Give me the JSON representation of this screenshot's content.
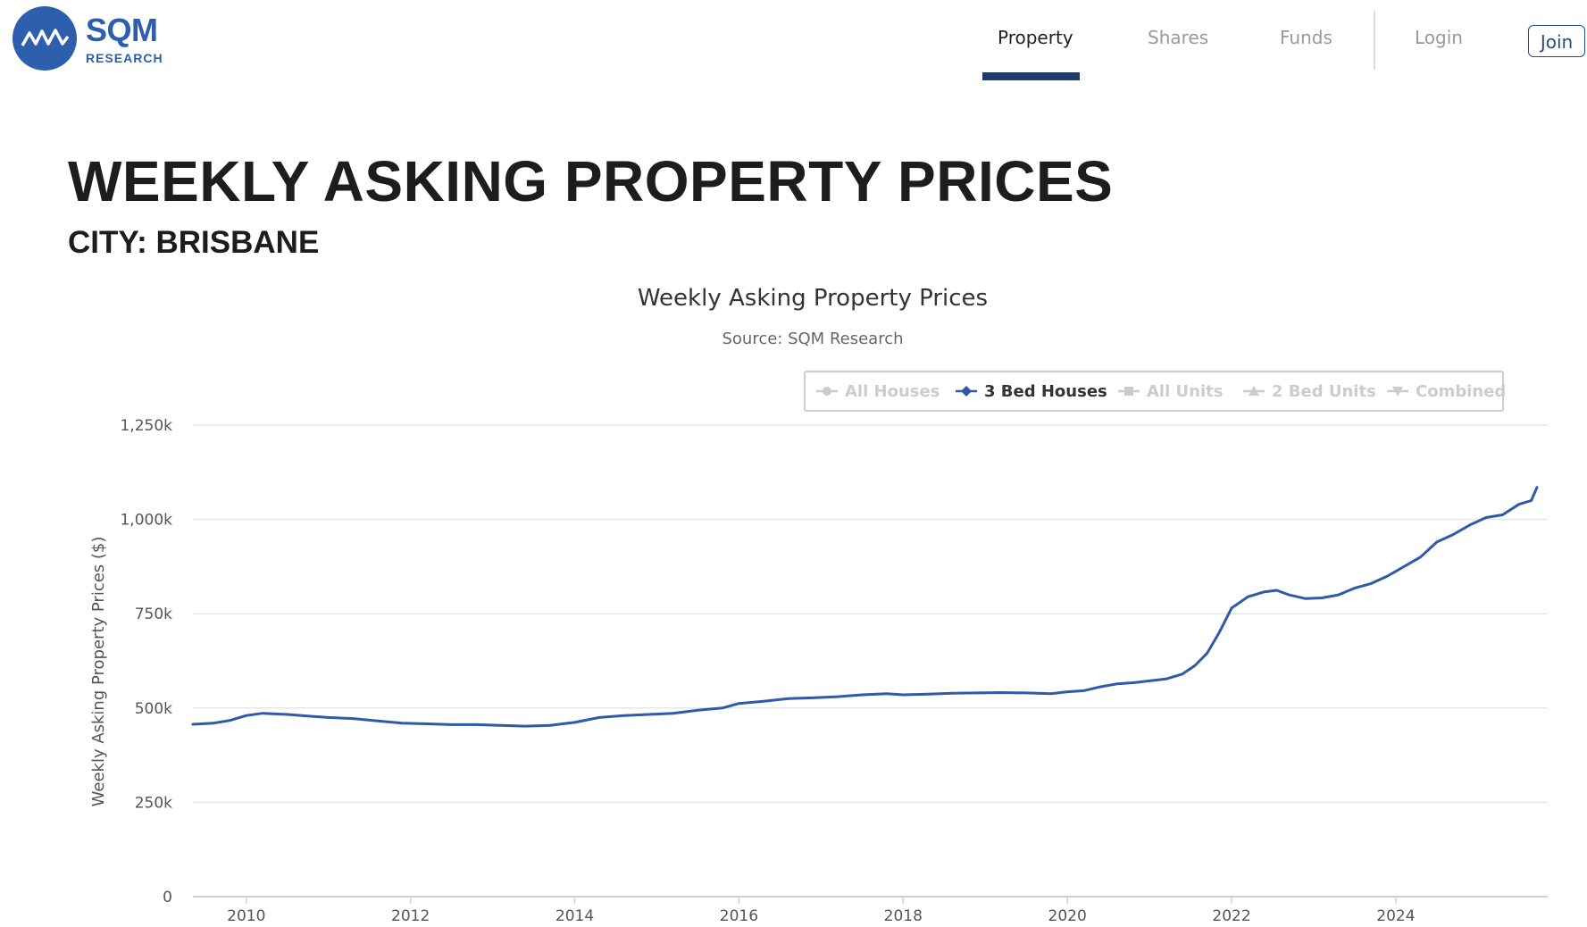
{
  "brand": {
    "name": "SQM",
    "sub": "RESEARCH",
    "color": "#2d5fae"
  },
  "nav": {
    "items": [
      {
        "label": "Property",
        "active": true
      },
      {
        "label": "Shares",
        "active": false
      },
      {
        "label": "Funds",
        "active": false
      },
      {
        "label": "Login",
        "active": false
      }
    ],
    "join_label": "Join",
    "accent": "#1f3a6e"
  },
  "page": {
    "title": "WEEKLY ASKING PROPERTY PRICES",
    "subtitle": "CITY: BRISBANE"
  },
  "chart_data": {
    "type": "line",
    "title": "Weekly Asking Property Prices",
    "subtitle": "Source: SQM Research",
    "ylabel": "Weekly Asking Property Prices ($)",
    "xlabel": "",
    "ylim": [
      0,
      1250000
    ],
    "yticks": [
      {
        "value": 0,
        "label": "0"
      },
      {
        "value": 250000,
        "label": "250k"
      },
      {
        "value": 500000,
        "label": "500k"
      },
      {
        "value": 750000,
        "label": "750k"
      },
      {
        "value": 1000000,
        "label": "1,000k"
      },
      {
        "value": 1250000,
        "label": "1,250k"
      }
    ],
    "xlim": [
      2009.35,
      2025.85
    ],
    "xticks": [
      {
        "value": 2010,
        "label": "2010"
      },
      {
        "value": 2012,
        "label": "2012"
      },
      {
        "value": 2014,
        "label": "2014"
      },
      {
        "value": 2016,
        "label": "2016"
      },
      {
        "value": 2018,
        "label": "2018"
      },
      {
        "value": 2020,
        "label": "2020"
      },
      {
        "value": 2022,
        "label": "2022"
      },
      {
        "value": 2024,
        "label": "2024"
      }
    ],
    "grid": true,
    "legend_position": "top-right",
    "legend": [
      {
        "name": "All Houses",
        "marker": "circle",
        "visible": false
      },
      {
        "name": "3 Bed Houses",
        "marker": "diamond",
        "visible": true
      },
      {
        "name": "All Units",
        "marker": "square",
        "visible": false
      },
      {
        "name": "2 Bed Units",
        "marker": "triangle",
        "visible": false
      },
      {
        "name": "Combined",
        "marker": "triangle-down",
        "visible": false
      }
    ],
    "series": [
      {
        "name": "3 Bed Houses",
        "color": "#2e5aa8",
        "points": [
          [
            2009.35,
            457000
          ],
          [
            2009.6,
            460000
          ],
          [
            2009.8,
            467000
          ],
          [
            2010.0,
            480000
          ],
          [
            2010.2,
            486000
          ],
          [
            2010.5,
            483000
          ],
          [
            2010.8,
            478000
          ],
          [
            2011.0,
            475000
          ],
          [
            2011.3,
            472000
          ],
          [
            2011.6,
            466000
          ],
          [
            2011.9,
            460000
          ],
          [
            2012.2,
            458000
          ],
          [
            2012.5,
            456000
          ],
          [
            2012.8,
            456000
          ],
          [
            2013.1,
            454000
          ],
          [
            2013.4,
            452000
          ],
          [
            2013.7,
            454000
          ],
          [
            2014.0,
            462000
          ],
          [
            2014.3,
            475000
          ],
          [
            2014.6,
            480000
          ],
          [
            2014.9,
            483000
          ],
          [
            2015.2,
            486000
          ],
          [
            2015.5,
            494000
          ],
          [
            2015.8,
            500000
          ],
          [
            2016.0,
            512000
          ],
          [
            2016.3,
            518000
          ],
          [
            2016.6,
            525000
          ],
          [
            2016.9,
            527000
          ],
          [
            2017.2,
            530000
          ],
          [
            2017.5,
            535000
          ],
          [
            2017.8,
            538000
          ],
          [
            2018.0,
            535000
          ],
          [
            2018.3,
            537000
          ],
          [
            2018.6,
            539000
          ],
          [
            2018.9,
            540000
          ],
          [
            2019.2,
            541000
          ],
          [
            2019.5,
            540000
          ],
          [
            2019.8,
            538000
          ],
          [
            2020.0,
            543000
          ],
          [
            2020.2,
            546000
          ],
          [
            2020.4,
            556000
          ],
          [
            2020.6,
            564000
          ],
          [
            2020.8,
            567000
          ],
          [
            2021.0,
            572000
          ],
          [
            2021.2,
            577000
          ],
          [
            2021.4,
            590000
          ],
          [
            2021.55,
            612000
          ],
          [
            2021.7,
            645000
          ],
          [
            2021.85,
            700000
          ],
          [
            2022.0,
            765000
          ],
          [
            2022.2,
            795000
          ],
          [
            2022.4,
            808000
          ],
          [
            2022.55,
            812000
          ],
          [
            2022.7,
            800000
          ],
          [
            2022.9,
            790000
          ],
          [
            2023.1,
            792000
          ],
          [
            2023.3,
            800000
          ],
          [
            2023.5,
            818000
          ],
          [
            2023.7,
            830000
          ],
          [
            2023.9,
            850000
          ],
          [
            2024.1,
            875000
          ],
          [
            2024.3,
            900000
          ],
          [
            2024.5,
            940000
          ],
          [
            2024.7,
            960000
          ],
          [
            2024.9,
            985000
          ],
          [
            2025.1,
            1005000
          ],
          [
            2025.3,
            1012000
          ],
          [
            2025.5,
            1040000
          ],
          [
            2025.65,
            1050000
          ],
          [
            2025.72,
            1085000
          ]
        ]
      }
    ]
  }
}
